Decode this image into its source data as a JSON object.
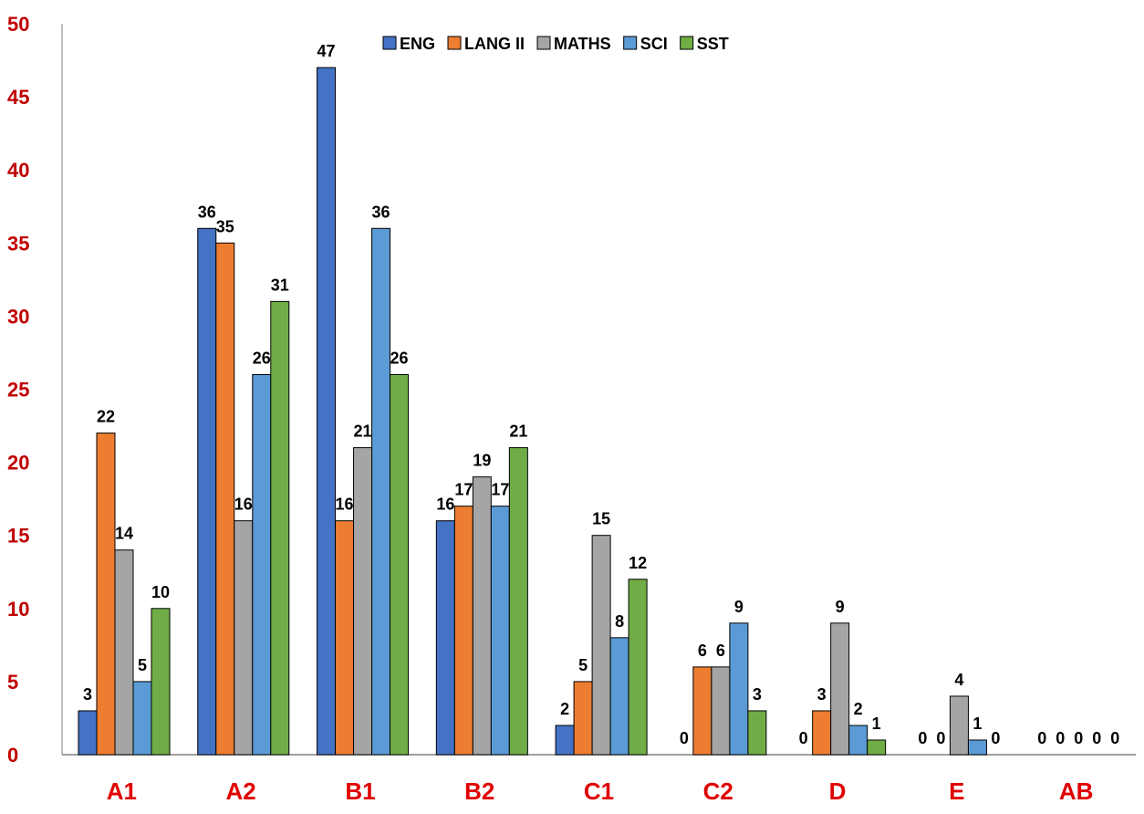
{
  "chart_data": {
    "type": "bar",
    "title": "",
    "xlabel": "",
    "ylabel": "",
    "categories": [
      "A1",
      "A2",
      "B1",
      "B2",
      "C1",
      "C2",
      "D",
      "E",
      "AB"
    ],
    "series": [
      {
        "name": "ENG",
        "color": "#4472c4",
        "values": [
          3,
          36,
          47,
          16,
          2,
          0,
          0,
          0,
          0
        ]
      },
      {
        "name": "LANG II",
        "color": "#ed7d31",
        "values": [
          22,
          35,
          16,
          17,
          5,
          6,
          3,
          0,
          0
        ]
      },
      {
        "name": "MATHS",
        "color": "#a5a5a5",
        "values": [
          14,
          16,
          21,
          19,
          15,
          6,
          9,
          4,
          0
        ]
      },
      {
        "name": "SCI",
        "color": "#5b9bd5",
        "values": [
          5,
          26,
          36,
          17,
          8,
          9,
          2,
          1,
          0
        ]
      },
      {
        "name": "SST",
        "color": "#70ad47",
        "values": [
          10,
          31,
          26,
          21,
          12,
          3,
          1,
          0,
          0
        ]
      }
    ],
    "ylim": [
      0,
      50
    ],
    "yticks": [
      0,
      5,
      10,
      15,
      20,
      25,
      30,
      35,
      40,
      45,
      50
    ],
    "grid": false,
    "legend_position": "top",
    "data_labels": true,
    "ytick_color": "#c00000",
    "xtick_color": "#e00000"
  }
}
